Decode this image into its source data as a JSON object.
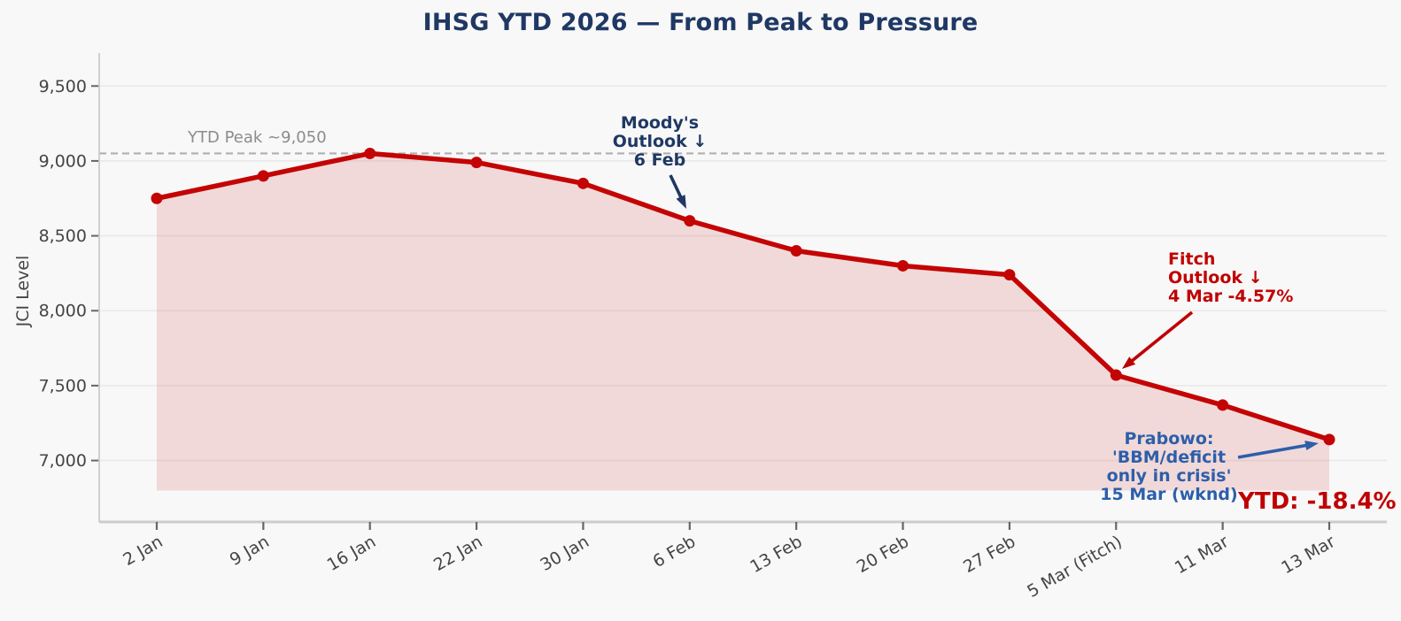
{
  "chart_data": {
    "type": "line",
    "title": "IHSG YTD 2026 — From Peak to Pressure",
    "xlabel": "",
    "ylabel": "JCI Level",
    "categories": [
      "2 Jan",
      "9 Jan",
      "16 Jan",
      "22 Jan",
      "30 Jan",
      "6 Feb",
      "13 Feb",
      "20 Feb",
      "27 Feb",
      "5 Mar (Fitch)",
      "11 Mar",
      "13 Mar"
    ],
    "values": [
      8750,
      8900,
      9050,
      8990,
      8850,
      8600,
      8400,
      8300,
      8240,
      7570,
      7370,
      7140
    ],
    "ylim": [
      6590,
      9720
    ],
    "yticks": [
      7000,
      7500,
      8000,
      8500,
      9000,
      9500
    ],
    "ytick_labels": [
      "7,000",
      "7,500",
      "8,000",
      "8,500",
      "9,000",
      "9,500"
    ],
    "grid": true,
    "legend": false,
    "line_color": "#c40404",
    "fill_color": "rgba(196,4,4,0.12)",
    "fill_baseline": 6800,
    "marker": "circle",
    "peak_line": {
      "value": 9050,
      "label": "YTD Peak ~9,050",
      "style": "dashed",
      "color": "#b0b0b0",
      "label_color": "#8c8c8c"
    },
    "annotations": {
      "moodys": {
        "line1": "Moody's",
        "line2": "Outlook ↓",
        "line3": "6 Feb",
        "color": "#1f3864",
        "target_category": "6 Feb",
        "arrow": {
          "from": [
            757,
            198
          ],
          "to": [
            775,
            236
          ]
        }
      },
      "fitch": {
        "line1": "Fitch",
        "line2": "Outlook ↓",
        "line3": "4 Mar  -4.57%",
        "color": "#c00000",
        "target_category": "5 Mar (Fitch)",
        "arrow": {
          "from": [
            1346,
            353
          ],
          "to": [
            1267,
            417
          ]
        }
      },
      "prabowo": {
        "line1": "Prabowo:",
        "line2": "'BBM/deficit",
        "line3": "only in crisis'",
        "line4": "15 Mar (wknd)",
        "color": "#2d5fa9",
        "target_category": "13 Mar",
        "arrow": {
          "from": [
            1398,
            517
          ],
          "to": [
            1489,
            501
          ]
        }
      }
    },
    "ytd_label": {
      "text": "YTD: -18.4%",
      "color": "#c00000"
    }
  },
  "axis": {
    "title_color": "#1f3864",
    "tick_label_color": "#454545",
    "tick_mark_color": "#666666",
    "spine_color": "#cccccc",
    "grid_color": "#e9e9e9",
    "background": "#f8f8f8"
  }
}
